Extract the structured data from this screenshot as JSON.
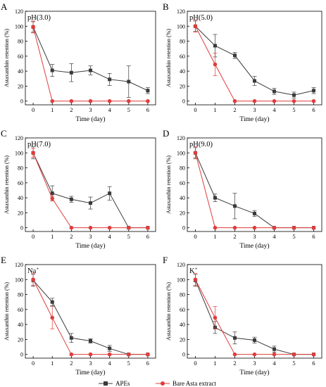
{
  "figure": {
    "legend": [
      {
        "label": "APEs",
        "color": "#3a3a3a",
        "marker": "square"
      },
      {
        "label": "Bare Asta  extract",
        "color": "#e03c3c",
        "marker": "circle"
      }
    ]
  },
  "chart_data": [
    {
      "panel": "A",
      "condition": "pH(3.0)",
      "type": "line",
      "xlabel": "Time (day)",
      "ylabel": "Astaxanthin retention (%)",
      "x": [
        0,
        1,
        2,
        3,
        4,
        5,
        6
      ],
      "x_ticks": [
        "0",
        "1",
        "2",
        "3",
        "4",
        "5",
        "6"
      ],
      "ylim": [
        -5,
        120
      ],
      "y_ticks": [
        "0",
        "20",
        "40",
        "60",
        "80",
        "100",
        "120"
      ],
      "series": [
        {
          "name": "APEs",
          "color": "#3a3a3a",
          "marker": "square",
          "values": [
            99,
            41,
            38,
            41,
            29,
            26,
            14
          ],
          "errors": [
            7,
            8,
            12,
            6,
            8,
            21,
            4
          ]
        },
        {
          "name": "Bare Asta  extract",
          "color": "#e03c3c",
          "marker": "circle",
          "values": [
            99,
            0,
            0,
            0,
            0,
            0,
            0
          ],
          "errors": [
            8,
            0,
            0,
            0,
            0,
            0,
            0
          ]
        }
      ]
    },
    {
      "panel": "B",
      "condition": "pH(5.0)",
      "type": "line",
      "xlabel": "Time (day)",
      "ylabel": "Astaxanthin retention (%)",
      "x": [
        0,
        1,
        2,
        3,
        4,
        5,
        6
      ],
      "x_ticks": [
        "0",
        "1",
        "2",
        "3",
        "4",
        "5",
        "6"
      ],
      "ylim": [
        -5,
        120
      ],
      "y_ticks": [
        "0",
        "20",
        "40",
        "60",
        "80",
        "100",
        "120"
      ],
      "series": [
        {
          "name": "APEs",
          "color": "#3a3a3a",
          "marker": "square",
          "values": [
            100,
            74,
            61,
            27,
            13,
            8,
            14
          ],
          "errors": [
            7,
            15,
            4,
            6,
            4,
            4,
            4
          ]
        },
        {
          "name": "Bare Asta  extract",
          "color": "#e03c3c",
          "marker": "circle",
          "values": [
            100,
            49,
            0,
            0,
            0,
            0,
            0
          ],
          "errors": [
            8,
            15,
            0,
            0,
            0,
            0,
            0
          ]
        }
      ]
    },
    {
      "panel": "C",
      "condition": "pH(7.0)",
      "type": "line",
      "xlabel": "Time (day)",
      "ylabel": "Astaxanthin retention (%)",
      "x": [
        0,
        1,
        2,
        3,
        4,
        5,
        6
      ],
      "x_ticks": [
        "0",
        "1",
        "2",
        "3",
        "4",
        "5",
        "6"
      ],
      "ylim": [
        -5,
        120
      ],
      "y_ticks": [
        "0",
        "20",
        "40",
        "60",
        "80",
        "100",
        "120"
      ],
      "series": [
        {
          "name": "APEs",
          "color": "#3a3a3a",
          "marker": "square",
          "values": [
            100,
            46,
            38,
            33,
            46,
            0,
            0
          ],
          "errors": [
            8,
            10,
            4,
            8,
            9,
            0,
            0
          ]
        },
        {
          "name": "Bare Asta  extract",
          "color": "#e03c3c",
          "marker": "circle",
          "values": [
            100,
            39,
            0,
            0,
            0,
            0,
            0
          ],
          "errors": [
            6,
            3,
            0,
            0,
            0,
            0,
            0
          ]
        }
      ]
    },
    {
      "panel": "D",
      "condition": "pH(9.0)",
      "type": "line",
      "xlabel": "Time (day)",
      "ylabel": "Astaxanthin retention (%)",
      "x": [
        0,
        1,
        2,
        3,
        4,
        5,
        6
      ],
      "x_ticks": [
        "0",
        "1",
        "2",
        "3",
        "4",
        "5",
        "6"
      ],
      "ylim": [
        -5,
        120
      ],
      "y_ticks": [
        "0",
        "20",
        "40",
        "60",
        "80",
        "100",
        "120"
      ],
      "series": [
        {
          "name": "APEs",
          "color": "#3a3a3a",
          "marker": "square",
          "values": [
            100,
            40,
            29,
            19,
            0,
            0,
            0
          ],
          "errors": [
            7,
            5,
            17,
            4,
            0,
            0,
            0
          ]
        },
        {
          "name": "Bare Asta  extract",
          "color": "#e03c3c",
          "marker": "circle",
          "values": [
            100,
            0,
            0,
            0,
            0,
            0,
            0
          ],
          "errors": [
            8,
            0,
            0,
            0,
            0,
            0,
            0
          ]
        }
      ]
    },
    {
      "panel": "E",
      "condition": "Na+",
      "type": "line",
      "xlabel": "Time (day)",
      "ylabel": "Astaxanthin retention (%)",
      "x": [
        0,
        1,
        2,
        3,
        4,
        5,
        6
      ],
      "x_ticks": [
        "0",
        "1",
        "2",
        "3",
        "4",
        "5",
        "6"
      ],
      "ylim": [
        -5,
        120
      ],
      "y_ticks": [
        "0",
        "20",
        "40",
        "60",
        "80",
        "100",
        "120"
      ],
      "series": [
        {
          "name": "APEs",
          "color": "#3a3a3a",
          "marker": "square",
          "values": [
            99,
            70,
            22,
            18,
            8,
            0,
            0
          ],
          "errors": [
            8,
            5,
            6,
            3,
            4,
            0,
            0
          ]
        },
        {
          "name": "Bare Asta  extract",
          "color": "#e03c3c",
          "marker": "circle",
          "values": [
            100,
            49,
            0,
            0,
            0,
            0,
            0
          ],
          "errors": [
            8,
            15,
            0,
            0,
            0,
            0,
            0
          ]
        }
      ]
    },
    {
      "panel": "F",
      "condition": "K+",
      "type": "line",
      "xlabel": "Time (day)",
      "ylabel": "Astaxanthin retention (%)",
      "x": [
        0,
        1,
        2,
        3,
        4,
        5,
        6
      ],
      "x_ticks": [
        "0",
        "1",
        "2",
        "3",
        "4",
        "5",
        "6"
      ],
      "ylim": [
        -5,
        120
      ],
      "y_ticks": [
        "0",
        "20",
        "40",
        "60",
        "80",
        "100",
        "120"
      ],
      "series": [
        {
          "name": "APEs",
          "color": "#3a3a3a",
          "marker": "square",
          "values": [
            99,
            36,
            22,
            19,
            7,
            0,
            0
          ],
          "errors": [
            8,
            8,
            8,
            4,
            4,
            0,
            0
          ]
        },
        {
          "name": "Bare Asta  extract",
          "color": "#e03c3c",
          "marker": "circle",
          "values": [
            100,
            49,
            0,
            0,
            0,
            0,
            0
          ],
          "errors": [
            8,
            15,
            0,
            0,
            0,
            0,
            0
          ]
        }
      ]
    }
  ]
}
